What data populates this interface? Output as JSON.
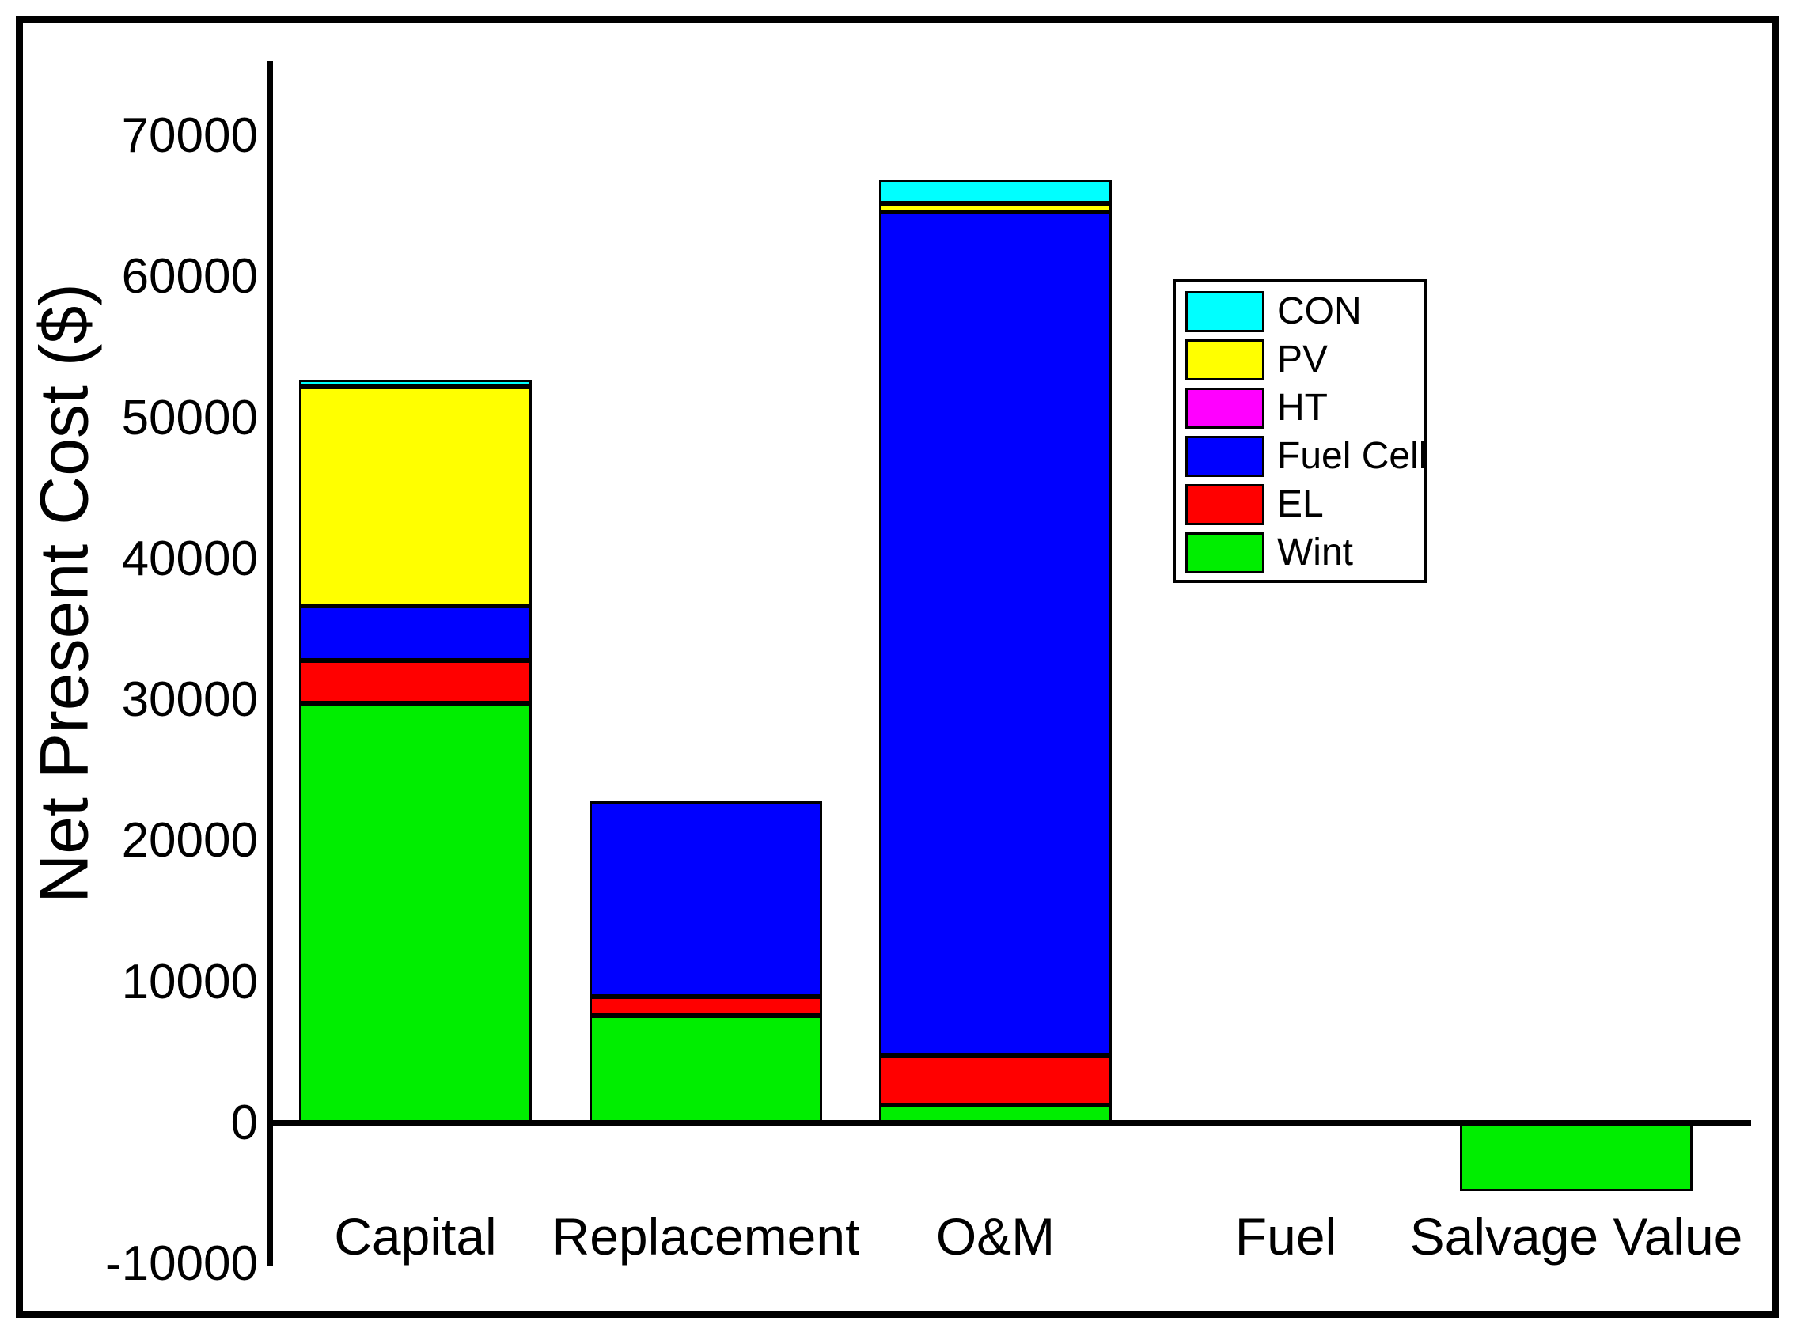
{
  "figure": {
    "background_color": "#FFFFFF",
    "border_color": "#000000"
  },
  "chart_data": {
    "type": "bar",
    "stacked": true,
    "title": "",
    "xlabel": "",
    "ylabel": "Net Present Cost ($)",
    "grid": false,
    "categories": [
      "Capital",
      "Replacement",
      "O&M",
      "Fuel",
      "Salvage Value"
    ],
    "series": [
      {
        "name": "Wint",
        "color": "#00EE00",
        "values": [
          29800,
          7600,
          1300,
          0,
          -4800
        ]
      },
      {
        "name": "EL",
        "color": "#FF0000",
        "values": [
          3000,
          1400,
          3500,
          0,
          0
        ]
      },
      {
        "name": "Fuel Cell",
        "color": "#0000FF",
        "values": [
          3900,
          13800,
          59800,
          0,
          0
        ]
      },
      {
        "name": "HT",
        "color": "#FF00FF",
        "values": [
          0,
          0,
          0,
          0,
          0
        ]
      },
      {
        "name": "PV",
        "color": "#FFFF00",
        "values": [
          15500,
          0,
          600,
          0,
          0
        ]
      },
      {
        "name": "CON",
        "color": "#00FFFF",
        "values": [
          500,
          0,
          1700,
          0,
          0
        ]
      }
    ],
    "y_ticks": [
      70000,
      60000,
      50000,
      40000,
      30000,
      20000,
      10000,
      0,
      -10000
    ],
    "ylim": [
      -10000,
      75300
    ],
    "legend": {
      "position": "upper-right",
      "entries": [
        "CON",
        "PV",
        "HT",
        "Fuel Cell",
        "EL",
        "Wint"
      ]
    }
  }
}
